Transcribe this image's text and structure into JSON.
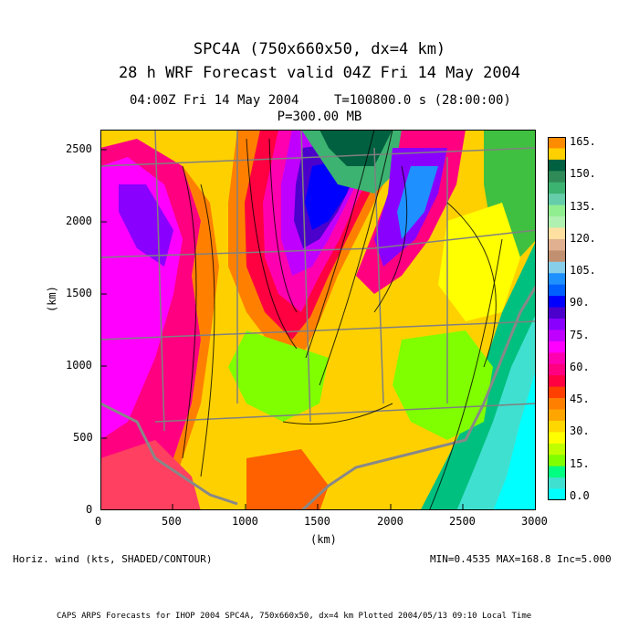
{
  "header": {
    "title1": "SPC4A (750x660x50, dx=4 km)",
    "title2": "28 h WRF Forecast valid 04Z Fri 14 May 2004",
    "time_left": "04:00Z Fri 14 May 2004",
    "time_right": "T=100800.0 s (28:00:00)",
    "level": "P=300.00 MB"
  },
  "axes": {
    "x_ticks": [
      "0",
      "500",
      "1000",
      "1500",
      "2000",
      "2500",
      "3000"
    ],
    "y_ticks": [
      "0",
      "500",
      "1000",
      "1500",
      "2000",
      "2500"
    ],
    "xlabel": "(km)",
    "ylabel": "(km)",
    "xlim": [
      0,
      3000
    ],
    "ylim": [
      0,
      2640
    ]
  },
  "colorbar": {
    "labels": [
      "165.",
      "150.",
      "135.",
      "120.",
      "105.",
      "90.",
      "75.",
      "60.",
      "45.",
      "30.",
      "15.",
      "0.0"
    ],
    "colors_top_to_bottom": [
      "#ff8c00",
      "#ffd000",
      "#006040",
      "#2e8b57",
      "#3cb371",
      "#66cdaa",
      "#90ee90",
      "#b0f0b0",
      "#ffe0a0",
      "#e0b090",
      "#c09070",
      "#87ceeb",
      "#1e90ff",
      "#0060ff",
      "#0000ff",
      "#4b00cc",
      "#8a00ff",
      "#c000ff",
      "#ff00ff",
      "#ff00b0",
      "#ff0080",
      "#ff0040",
      "#ff4000",
      "#ff8000",
      "#ffa500",
      "#ffd700",
      "#ffff00",
      "#c0ff00",
      "#80ff00",
      "#00ff80",
      "#40e0d0",
      "#00ffff"
    ]
  },
  "footer": {
    "left": "Horiz. wind (kts, SHADED/CONTOUR)",
    "right": "MIN=0.4535 MAX=168.8 Inc=5.000",
    "credit": "CAPS ARPS Forecasts for IHOP 2004   SPC4A, 750x660x50, dx=4 km   Plotted 2004/05/13 09:10 Local Time"
  }
}
